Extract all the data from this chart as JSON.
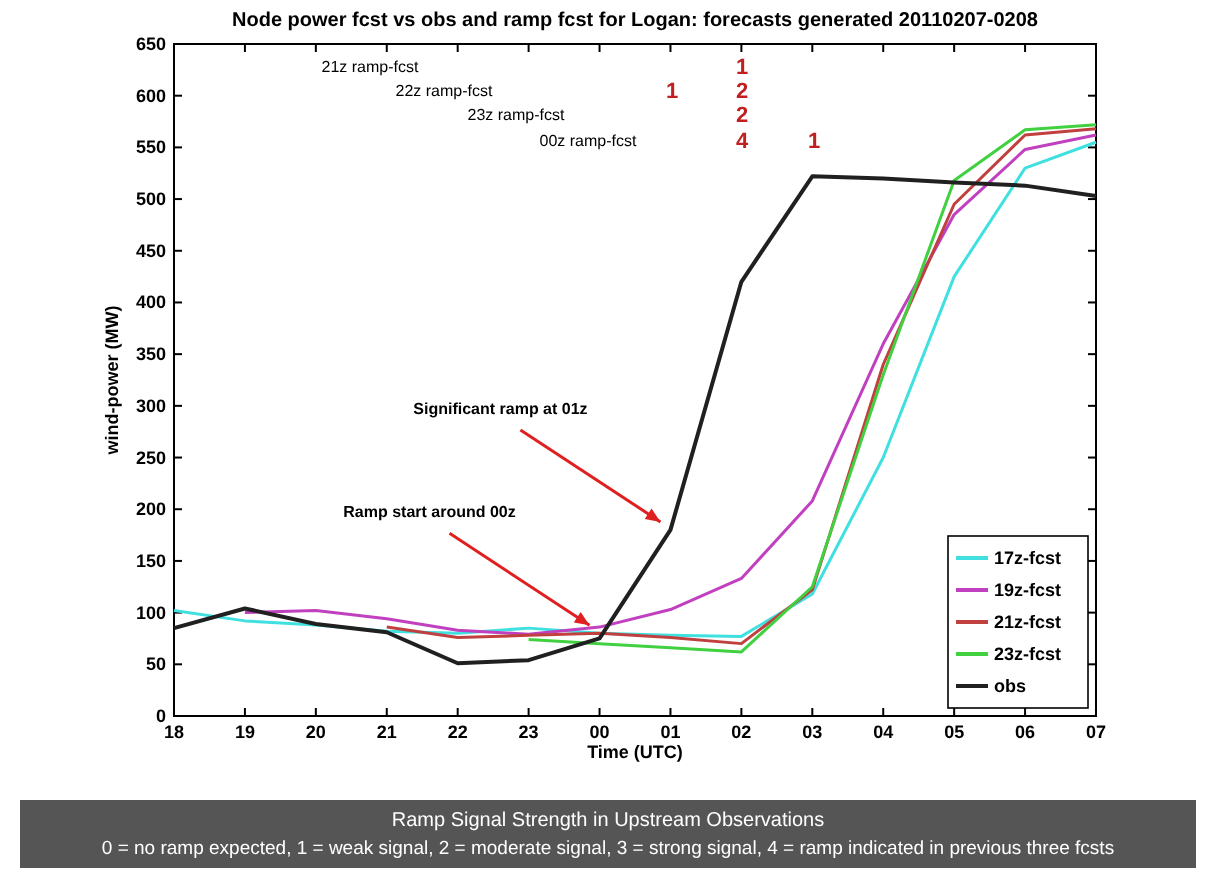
{
  "chart_data": {
    "type": "line",
    "title": "Node power fcst vs obs and ramp fcst for Logan: forecasts generated 20110207-0208",
    "xlabel": "Time (UTC)",
    "ylabel": "wind-power (MW)",
    "xlim": [
      "2011-02-07T18:00",
      "2011-02-08T07:00"
    ],
    "xticks": [
      {
        "value": "2011-02-07T18:00",
        "label": "18"
      },
      {
        "value": "2011-02-07T19:00",
        "label": "19"
      },
      {
        "value": "2011-02-07T20:00",
        "label": "20"
      },
      {
        "value": "2011-02-07T21:00",
        "label": "21"
      },
      {
        "value": "2011-02-07T22:00",
        "label": "22"
      },
      {
        "value": "2011-02-07T23:00",
        "label": "23"
      },
      {
        "value": "2011-02-08T00:00",
        "label": "00"
      },
      {
        "value": "2011-02-08T01:00",
        "label": "01"
      },
      {
        "value": "2011-02-08T02:00",
        "label": "02"
      },
      {
        "value": "2011-02-08T03:00",
        "label": "03"
      },
      {
        "value": "2011-02-08T04:00",
        "label": "04"
      },
      {
        "value": "2011-02-08T05:00",
        "label": "05"
      },
      {
        "value": "2011-02-08T06:00",
        "label": "06"
      },
      {
        "value": "2011-02-08T07:00",
        "label": "07"
      }
    ],
    "ylim": [
      0,
      650
    ],
    "yticks": [
      0,
      50,
      100,
      150,
      200,
      250,
      300,
      350,
      400,
      450,
      500,
      550,
      600,
      650
    ],
    "grid": false,
    "legend": "bottom right",
    "line_style": "solid",
    "marker": "none",
    "series": [
      {
        "name": "17z-fcst",
        "color": "#40e0e0",
        "x": [
          "2011-02-07T18:00",
          "2011-02-07T19:00",
          "2011-02-07T20:00",
          "2011-02-07T21:00",
          "2011-02-07T22:00",
          "2011-02-07T23:00",
          "2011-02-08T00:00",
          "2011-02-08T01:00",
          "2011-02-08T02:00",
          "2011-02-08T03:00",
          "2011-02-08T04:00",
          "2011-02-08T05:00",
          "2011-02-08T06:00",
          "2011-02-08T07:00"
        ],
        "values": [
          102,
          92,
          88,
          82,
          80,
          85,
          80,
          78,
          77,
          118,
          250,
          425,
          530,
          555
        ]
      },
      {
        "name": "19z-fcst",
        "color": "#c040c0",
        "x": [
          "2011-02-07T19:00",
          "2011-02-07T20:00",
          "2011-02-07T21:00",
          "2011-02-07T22:00",
          "2011-02-07T23:00",
          "2011-02-08T00:00",
          "2011-02-08T01:00",
          "2011-02-08T02:00",
          "2011-02-08T03:00",
          "2011-02-08T04:00",
          "2011-02-08T05:00",
          "2011-02-08T06:00",
          "2011-02-08T07:00"
        ],
        "values": [
          100,
          102,
          94,
          83,
          79,
          86,
          103,
          133,
          208,
          360,
          485,
          548,
          562
        ]
      },
      {
        "name": "21z-fcst",
        "color": "#c04040",
        "x": [
          "2011-02-07T21:00",
          "2011-02-07T22:00",
          "2011-02-07T23:00",
          "2011-02-08T00:00",
          "2011-02-08T01:00",
          "2011-02-08T02:00",
          "2011-02-08T03:00",
          "2011-02-08T04:00",
          "2011-02-08T05:00",
          "2011-02-08T06:00",
          "2011-02-08T07:00"
        ],
        "values": [
          86,
          76,
          78,
          80,
          76,
          70,
          122,
          340,
          495,
          562,
          568
        ]
      },
      {
        "name": "23z-fcst",
        "color": "#40d040",
        "x": [
          "2011-02-07T23:00",
          "2011-02-08T00:00",
          "2011-02-08T01:00",
          "2011-02-08T02:00",
          "2011-02-08T03:00",
          "2011-02-08T04:00",
          "2011-02-08T05:00",
          "2011-02-08T06:00",
          "2011-02-08T07:00"
        ],
        "values": [
          74,
          70,
          66,
          62,
          125,
          330,
          518,
          567,
          572
        ]
      },
      {
        "name": "obs",
        "color": "#202020",
        "x": [
          "2011-02-07T18:00",
          "2011-02-07T19:00",
          "2011-02-07T20:00",
          "2011-02-07T21:00",
          "2011-02-07T22:00",
          "2011-02-07T23:00",
          "2011-02-08T00:00",
          "2011-02-08T01:00",
          "2011-02-08T02:00",
          "2011-02-08T03:00",
          "2011-02-08T04:00",
          "2011-02-08T05:00",
          "2011-02-08T06:00",
          "2011-02-08T07:00"
        ],
        "values": [
          85,
          104,
          89,
          81,
          51,
          54,
          75,
          180,
          420,
          522,
          520,
          516,
          513,
          503
        ]
      }
    ],
    "annotations": [
      "Ramp Signal Strength in Upstream Observations",
      "0 = no ramp expected, 1 = weak signal, 2 = moderate signal, 3 = strong signal, 4 = ramp indicated in previous three fcsts",
      "21z ramp-fcst",
      "22z ramp-fcst",
      "23z ramp-fcst",
      "00z ramp-fcst",
      "1",
      "1",
      "2",
      "2",
      "4",
      "1",
      {
        "text": "Significant ramp at 01z",
        "x": "2011-02-08T01:00",
        "y": 180
      },
      {
        "text": "Ramp start around 00z",
        "x": "2011-02-08T00:00",
        "y": 80
      }
    ]
  }
}
